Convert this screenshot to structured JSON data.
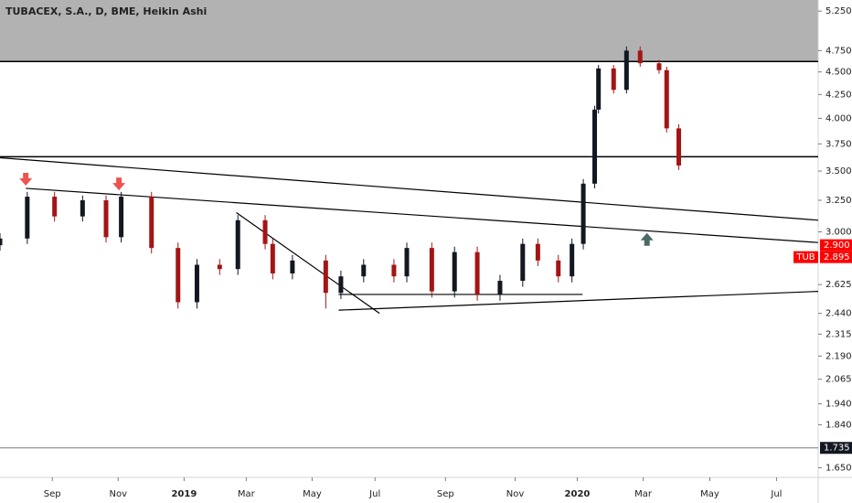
{
  "chart_data": {
    "type": "candlestick",
    "title": "TUBACEX, S.A., D, BME, Heikin Ashi",
    "log_scale": true,
    "xlim": [
      0,
      108
    ],
    "ylim": [
      1.61,
      5.4
    ],
    "xticks": [
      {
        "value": 6.9,
        "label": "Sep"
      },
      {
        "value": 15.6,
        "label": "Nov"
      },
      {
        "value": 24.3,
        "label": "2019"
      },
      {
        "value": 32.5,
        "label": "Mar"
      },
      {
        "value": 41.2,
        "label": "May"
      },
      {
        "value": 49.5,
        "label": "Jul"
      },
      {
        "value": 58.8,
        "label": "Sep"
      },
      {
        "value": 68,
        "label": "Nov"
      },
      {
        "value": 76.2,
        "label": "2020"
      },
      {
        "value": 84.9,
        "label": "Mar"
      },
      {
        "value": 93.7,
        "label": "May"
      },
      {
        "value": 102.5,
        "label": "Jul"
      }
    ],
    "yticks": [
      {
        "value": 5.25,
        "label": "5.250"
      },
      {
        "value": 4.75,
        "label": "4.750"
      },
      {
        "value": 4.5,
        "label": "4.500"
      },
      {
        "value": 4.25,
        "label": "4.250"
      },
      {
        "value": 4.0,
        "label": "4.000"
      },
      {
        "value": 3.75,
        "label": "3.750"
      },
      {
        "value": 3.5,
        "label": "3.500"
      },
      {
        "value": 3.25,
        "label": "3.250"
      },
      {
        "value": 3.0,
        "label": "3.000"
      },
      {
        "value": 2.625,
        "label": "2.625"
      },
      {
        "value": 2.44,
        "label": "2.440"
      },
      {
        "value": 2.315,
        "label": "2.315"
      },
      {
        "value": 2.19,
        "label": "2.190"
      },
      {
        "value": 2.065,
        "label": "2.065"
      },
      {
        "value": 1.94,
        "label": "1.940"
      },
      {
        "value": 1.84,
        "label": "1.840"
      },
      {
        "value": 1.65,
        "label": "1.650"
      }
    ],
    "up_color": "#131722",
    "down_color": "#a31515",
    "x": [
      0,
      3.6,
      7.2,
      10.9,
      14,
      16,
      20,
      23.5,
      26,
      29,
      31.4,
      35,
      36,
      38.6,
      43,
      45,
      48,
      52,
      53.7,
      57,
      60,
      63,
      66,
      69,
      71,
      73.7,
      75.5,
      77,
      78.5,
      79,
      81,
      82.7,
      84.5,
      87,
      88,
      89.6
    ],
    "open": [
      2.9,
      2.95,
      3.28,
      3.12,
      3.25,
      2.96,
      3.28,
      2.88,
      2.51,
      2.76,
      2.73,
      3.09,
      2.91,
      2.7,
      2.79,
      2.57,
      2.68,
      2.76,
      2.68,
      2.88,
      2.58,
      2.85,
      2.56,
      2.65,
      2.91,
      2.79,
      2.68,
      2.91,
      3.39,
      4.09,
      4.54,
      4.3,
      4.75,
      4.6,
      4.52,
      3.9
    ],
    "high": [
      2.99,
      3.32,
      3.32,
      3.29,
      3.29,
      3.32,
      3.32,
      2.92,
      2.8,
      2.8,
      3.13,
      3.13,
      2.95,
      2.83,
      2.83,
      2.72,
      2.8,
      2.8,
      2.92,
      2.92,
      2.89,
      2.89,
      2.69,
      2.95,
      2.95,
      2.83,
      2.95,
      3.43,
      4.13,
      4.58,
      4.58,
      4.8,
      4.8,
      4.64,
      4.56,
      3.94
    ],
    "low": [
      2.86,
      2.91,
      3.08,
      3.08,
      2.92,
      2.92,
      2.84,
      2.47,
      2.47,
      2.69,
      2.69,
      2.87,
      2.66,
      2.66,
      2.47,
      2.53,
      2.64,
      2.64,
      2.64,
      2.54,
      2.54,
      2.52,
      2.52,
      2.61,
      2.75,
      2.64,
      2.64,
      2.87,
      3.35,
      4.05,
      4.26,
      4.26,
      4.56,
      4.48,
      3.86,
      3.51
    ],
    "close": [
      2.95,
      3.28,
      3.12,
      3.25,
      2.96,
      3.28,
      2.88,
      2.51,
      2.76,
      2.73,
      3.09,
      2.91,
      2.7,
      2.79,
      2.57,
      2.68,
      2.76,
      2.68,
      2.88,
      2.58,
      2.85,
      2.56,
      2.65,
      2.91,
      2.79,
      2.68,
      2.91,
      3.39,
      4.09,
      4.54,
      4.3,
      4.75,
      4.6,
      4.52,
      3.9,
      3.55
    ],
    "zone": {
      "from": 4.62,
      "color": "#b2b2b2"
    },
    "levels": [
      {
        "value": 4.62,
        "color": "#000000"
      },
      {
        "value": 3.63,
        "color": "#000000"
      },
      {
        "value": 1.735,
        "color": "#787b86"
      }
    ],
    "trendlines": [
      {
        "x": [
          0,
          108
        ],
        "y": [
          3.62,
          3.09
        ]
      },
      {
        "x": [
          3.4,
          108
        ],
        "y": [
          3.35,
          2.92
        ]
      },
      {
        "x": [
          31.2,
          50.1
        ],
        "y": [
          3.15,
          2.44
        ]
      },
      {
        "x": [
          44.7,
          108
        ],
        "y": [
          2.46,
          2.58
        ]
      },
      {
        "x": [
          44.7,
          76.9
        ],
        "y": [
          2.56,
          2.56
        ]
      }
    ],
    "arrows": [
      {
        "x": 3.4,
        "y": 3.42,
        "direction": "down",
        "color": "#ef5350"
      },
      {
        "x": 15.7,
        "y": 3.38,
        "direction": "down",
        "color": "#ef5350"
      },
      {
        "x": 85.4,
        "y": 2.95,
        "direction": "up",
        "color": "#4b6b64"
      }
    ],
    "price_labels": [
      {
        "value": 2.9,
        "label": "2.900",
        "color": "#ff0000"
      },
      {
        "value": 2.895,
        "label": "2.895",
        "tag": "TUB",
        "color": "#ff0000"
      },
      {
        "value": 1.735,
        "label": "1.735",
        "color": "#131722"
      }
    ]
  }
}
